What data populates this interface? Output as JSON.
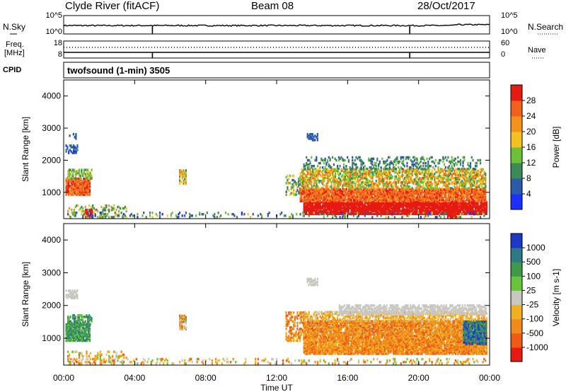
{
  "header": {
    "title": "Clyde River (fitACF)",
    "beam": "Beam 08",
    "date": "28/Oct/2017"
  },
  "chart_data": [
    {
      "type": "line",
      "name_panel": "sky-noise",
      "left_label": "N.Sky",
      "right_label": "N.Search",
      "left_ticks": [
        "10^5",
        "10^0"
      ],
      "right_ticks": [
        "10^5",
        "10^0"
      ],
      "gaps_hours": [
        5.0,
        19.5
      ]
    },
    {
      "type": "line",
      "name_panel": "frequency-nave",
      "left_label": "Freq. [MHz]",
      "right_label": "Nave",
      "left_ticks": [
        "18",
        "8"
      ],
      "right_ticks": [
        "60",
        "0"
      ]
    },
    {
      "type": "heatmap",
      "name_panel": "cpid",
      "left_label": "CPID",
      "text": "twofsound (1-min) 3505"
    },
    {
      "type": "heatmap",
      "name_panel": "power",
      "ylabel": "Slant Range [km]",
      "yticks": [
        1000,
        2000,
        3000,
        4000
      ],
      "ylim": [
        180,
        4500
      ],
      "xlim": [
        0,
        24
      ],
      "colorbar_label": "Power [dB]",
      "colorbar_ticks": [
        "4",
        "8",
        "12",
        "16",
        "20",
        "24",
        "28"
      ],
      "colors": [
        "#1b2fff",
        "#2b5ba8",
        "#3c8a57",
        "#6bc23a",
        "#f2c320",
        "#f4921c",
        "#f0621c",
        "#e61a10"
      ]
    },
    {
      "type": "heatmap",
      "name_panel": "velocity",
      "ylabel": "Slant Range [km]",
      "yticks": [
        1000,
        2000,
        3000,
        4000
      ],
      "ylim": [
        180,
        4500
      ],
      "xlim": [
        0,
        24
      ],
      "xticks": [
        "00:00",
        "04:00",
        "08:00",
        "12:00",
        "16:00",
        "20:00",
        "00:00"
      ],
      "xlabel": "Time UT",
      "colorbar_label": "Velocity [m s-1]",
      "colorbar_ticks": [
        "1000",
        "500",
        "100",
        "25",
        "-25",
        "-100",
        "-500",
        "-1000"
      ],
      "colors": [
        "#1c38c6",
        "#2d7a84",
        "#3e9a4a",
        "#68c43a",
        "#c8c8c0",
        "#f0b020",
        "#f08a1c",
        "#f05a14",
        "#e61a10"
      ]
    }
  ]
}
